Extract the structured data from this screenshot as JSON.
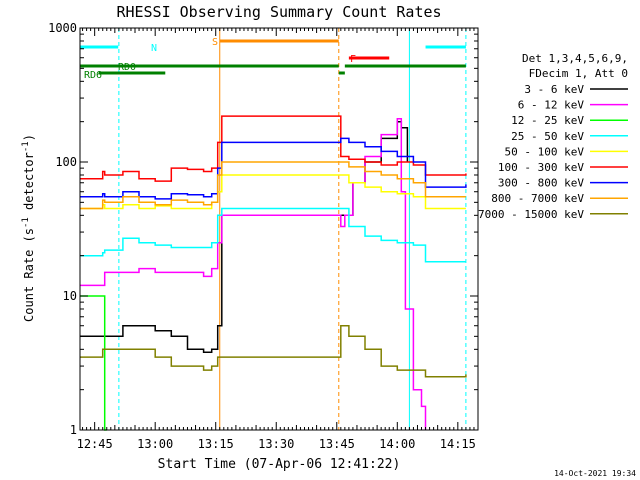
{
  "chart_data": {
    "type": "line",
    "title": "RHESSI Observing Summary Count Rates",
    "xlabel": "Start Time (07-Apr-06 12:41:22)",
    "ylabel_main": "Count Rate (s",
    "ylabel_sup1": "-1",
    "ylabel_mid": " detector",
    "ylabel_sup2": "-1",
    "ylabel_end": ")",
    "y_scale": "log",
    "ylim": [
      1,
      1000
    ],
    "xlim": [
      "12:41:22",
      "14:20:00"
    ],
    "x_ticks": [
      "12:45",
      "13:00",
      "13:15",
      "13:30",
      "13:45",
      "14:00",
      "14:15"
    ],
    "y_ticks": [
      {
        "value": 1,
        "label": "1"
      },
      {
        "value": 10,
        "label": "10"
      },
      {
        "value": 100,
        "label": "100"
      },
      {
        "value": 1000,
        "label": "1000"
      }
    ],
    "legend_header": [
      "Det 1,3,4,5,6,9,",
      "FDecim 1, Att 0"
    ],
    "legend_placement": "right",
    "timestamp": "14-Oct-2021 19:34",
    "series": [
      {
        "name": "3 - 6 keV",
        "color": "#000000",
        "points": [
          [
            "12:41:22",
            5
          ],
          [
            "12:47:00",
            5
          ],
          [
            "12:47:30",
            5
          ],
          [
            "12:52:00",
            6
          ],
          [
            "12:56:00",
            6
          ],
          [
            "13:00:00",
            5.5
          ],
          [
            "13:04:00",
            5
          ],
          [
            "13:08:00",
            4
          ],
          [
            "13:12:00",
            3.8
          ],
          [
            "13:14:00",
            4
          ],
          [
            "13:15:30",
            6
          ],
          [
            "13:16:30",
            40
          ],
          [
            "13:47:00",
            40
          ],
          [
            "13:49:00",
            70
          ],
          [
            "13:52:00",
            100
          ],
          [
            "13:56:00",
            150
          ],
          [
            "14:00:00",
            200
          ],
          [
            "14:01:00",
            180
          ],
          [
            "14:02:30",
            100
          ]
        ]
      },
      {
        "name": "6 - 12 keV",
        "color": "#ff00ff",
        "points": [
          [
            "12:41:22",
            12
          ],
          [
            "12:47:00",
            12
          ],
          [
            "12:47:30",
            15
          ],
          [
            "12:52:00",
            15
          ],
          [
            "12:56:00",
            16
          ],
          [
            "13:00:00",
            15
          ],
          [
            "13:04:00",
            15
          ],
          [
            "13:08:00",
            15
          ],
          [
            "13:12:00",
            14
          ],
          [
            "13:14:00",
            16
          ],
          [
            "13:15:30",
            25
          ],
          [
            "13:16:30",
            40
          ],
          [
            "13:46:00",
            33
          ],
          [
            "13:47:00",
            40
          ],
          [
            "13:49:00",
            70
          ],
          [
            "13:52:00",
            110
          ],
          [
            "13:56:00",
            160
          ],
          [
            "14:00:00",
            210
          ],
          [
            "14:01:00",
            60
          ],
          [
            "14:02:00",
            8
          ],
          [
            "14:04:00",
            2
          ],
          [
            "14:06:00",
            1.5
          ],
          [
            "14:07:00",
            1
          ]
        ]
      },
      {
        "name": "12 - 25 keV",
        "color": "#00ff00",
        "points": [
          [
            "12:41:22",
            10
          ],
          [
            "12:47:00",
            10
          ],
          [
            "12:47:30",
            1
          ],
          [
            "12:48:00",
            1
          ]
        ]
      },
      {
        "name": "25 - 50 keV",
        "color": "#00ffff",
        "points": [
          [
            "12:41:22",
            20
          ],
          [
            "12:47:00",
            21
          ],
          [
            "12:47:30",
            22
          ],
          [
            "12:52:00",
            27
          ],
          [
            "12:56:00",
            25
          ],
          [
            "13:00:00",
            24
          ],
          [
            "13:04:00",
            23
          ],
          [
            "13:08:00",
            23
          ],
          [
            "13:12:00",
            23
          ],
          [
            "13:14:00",
            25
          ],
          [
            "13:15:30",
            40
          ],
          [
            "13:16:30",
            45
          ],
          [
            "13:46:00",
            45
          ],
          [
            "13:48:00",
            33
          ],
          [
            "13:52:00",
            28
          ],
          [
            "13:56:00",
            26
          ],
          [
            "14:00:00",
            25
          ],
          [
            "14:04:00",
            24
          ],
          [
            "14:07:00",
            18
          ],
          [
            "14:12:00",
            18
          ],
          [
            "14:17:00",
            18
          ]
        ]
      },
      {
        "name": "50 - 100 keV",
        "color": "#ffff00",
        "points": [
          [
            "12:41:22",
            45
          ],
          [
            "12:47:00",
            48
          ],
          [
            "12:47:30",
            45
          ],
          [
            "12:52:00",
            48
          ],
          [
            "12:56:00",
            45
          ],
          [
            "13:00:00",
            47
          ],
          [
            "13:04:00",
            45
          ],
          [
            "13:08:00",
            45
          ],
          [
            "13:12:00",
            45
          ],
          [
            "13:14:00",
            50
          ],
          [
            "13:15:30",
            60
          ],
          [
            "13:16:30",
            80
          ],
          [
            "13:46:00",
            80
          ],
          [
            "13:48:00",
            70
          ],
          [
            "13:52:00",
            65
          ],
          [
            "13:56:00",
            60
          ],
          [
            "14:00:00",
            58
          ],
          [
            "14:04:00",
            55
          ],
          [
            "14:07:00",
            45
          ],
          [
            "14:12:00",
            45
          ],
          [
            "14:17:00",
            45
          ]
        ]
      },
      {
        "name": "100 - 300 keV",
        "color": "#ff0000",
        "points": [
          [
            "12:41:22",
            75
          ],
          [
            "12:47:00",
            85
          ],
          [
            "12:47:30",
            80
          ],
          [
            "12:52:00",
            85
          ],
          [
            "12:56:00",
            75
          ],
          [
            "13:00:00",
            72
          ],
          [
            "13:04:00",
            90
          ],
          [
            "13:08:00",
            88
          ],
          [
            "13:12:00",
            85
          ],
          [
            "13:14:00",
            90
          ],
          [
            "13:15:30",
            140
          ],
          [
            "13:16:30",
            220
          ],
          [
            "13:46:00",
            110
          ],
          [
            "13:48:00",
            105
          ],
          [
            "13:52:00",
            100
          ],
          [
            "13:56:00",
            95
          ],
          [
            "14:00:00",
            100
          ],
          [
            "14:04:00",
            95
          ],
          [
            "14:07:00",
            80
          ],
          [
            "14:12:00",
            80
          ],
          [
            "14:17:00",
            82
          ]
        ]
      },
      {
        "name": "300 - 800 keV",
        "color": "#0000ff",
        "points": [
          [
            "12:41:22",
            55
          ],
          [
            "12:47:00",
            58
          ],
          [
            "12:47:30",
            55
          ],
          [
            "12:52:00",
            60
          ],
          [
            "12:56:00",
            55
          ],
          [
            "13:00:00",
            53
          ],
          [
            "13:04:00",
            58
          ],
          [
            "13:08:00",
            57
          ],
          [
            "13:12:00",
            55
          ],
          [
            "13:14:00",
            58
          ],
          [
            "13:15:30",
            90
          ],
          [
            "13:16:30",
            140
          ],
          [
            "13:46:00",
            150
          ],
          [
            "13:48:00",
            140
          ],
          [
            "13:52:00",
            130
          ],
          [
            "13:56:00",
            120
          ],
          [
            "14:00:00",
            110
          ],
          [
            "14:04:00",
            100
          ],
          [
            "14:07:00",
            65
          ],
          [
            "14:12:00",
            65
          ],
          [
            "14:17:00",
            68
          ]
        ]
      },
      {
        "name": "800 - 7000 keV",
        "color": "#ffa500",
        "points": [
          [
            "12:41:22",
            45
          ],
          [
            "12:47:00",
            52
          ],
          [
            "12:47:30",
            50
          ],
          [
            "12:52:00",
            55
          ],
          [
            "12:56:00",
            50
          ],
          [
            "13:00:00",
            48
          ],
          [
            "13:04:00",
            52
          ],
          [
            "13:08:00",
            50
          ],
          [
            "13:12:00",
            48
          ],
          [
            "13:14:00",
            50
          ],
          [
            "13:15:30",
            80
          ],
          [
            "13:16:30",
            100
          ],
          [
            "13:46:00",
            100
          ],
          [
            "13:48:00",
            92
          ],
          [
            "13:52:00",
            85
          ],
          [
            "13:56:00",
            80
          ],
          [
            "14:00:00",
            75
          ],
          [
            "14:04:00",
            70
          ],
          [
            "14:07:00",
            55
          ],
          [
            "14:12:00",
            55
          ],
          [
            "14:17:00",
            55
          ]
        ]
      },
      {
        "name": "7000 - 15000 keV",
        "color": "#808000",
        "points": [
          [
            "12:41:22",
            3.5
          ],
          [
            "12:47:00",
            4
          ],
          [
            "12:47:30",
            4
          ],
          [
            "12:52:00",
            4
          ],
          [
            "12:56:00",
            4
          ],
          [
            "13:00:00",
            3.5
          ],
          [
            "13:04:00",
            3
          ],
          [
            "13:08:00",
            3
          ],
          [
            "13:12:00",
            2.8
          ],
          [
            "13:14:00",
            3
          ],
          [
            "13:15:30",
            3.5
          ],
          [
            "13:16:30",
            3.5
          ],
          [
            "13:46:00",
            6
          ],
          [
            "13:48:00",
            5
          ],
          [
            "13:52:00",
            4
          ],
          [
            "13:56:00",
            3
          ],
          [
            "14:00:00",
            2.8
          ],
          [
            "14:04:00",
            2.8
          ],
          [
            "14:07:00",
            2.5
          ],
          [
            "14:12:00",
            2.5
          ],
          [
            "14:17:00",
            2.6
          ]
        ]
      }
    ],
    "flags": [
      {
        "label": "N",
        "color": "#00ffff",
        "segments": [
          [
            "12:41:22",
            "12:50:50"
          ],
          [
            "14:07:00",
            "14:17:00"
          ]
        ]
      },
      {
        "label": "S",
        "color": "#ff8c00",
        "segments": [
          [
            "13:16:00",
            "13:45:30"
          ]
        ]
      },
      {
        "label": "F",
        "color": "#ff0000",
        "segments": [
          [
            "13:48:00",
            "13:58:00"
          ]
        ]
      },
      {
        "label": "RD0",
        "color": "#008000",
        "segments": [
          [
            "12:41:22",
            "13:45:30"
          ],
          [
            "13:47:00",
            "14:17:00"
          ]
        ]
      },
      {
        "label": "RD6",
        "color": "#008000",
        "segments": [
          [
            "12:46:00",
            "13:02:30"
          ],
          [
            "13:45:30",
            "13:47:00"
          ]
        ]
      }
    ],
    "vlines": [
      {
        "time": "12:41:22",
        "color": "#00ffff",
        "style": "solid"
      },
      {
        "time": "12:51:00",
        "color": "#00ffff",
        "style": "dashed"
      },
      {
        "time": "13:16:00",
        "color": "#ff8c00",
        "style": "solid"
      },
      {
        "time": "13:45:30",
        "color": "#ff8c00",
        "style": "dashed"
      },
      {
        "time": "14:03:00",
        "color": "#00ffff",
        "style": "solid"
      },
      {
        "time": "14:17:00",
        "color": "#00ffff",
        "style": "dashed"
      }
    ]
  }
}
